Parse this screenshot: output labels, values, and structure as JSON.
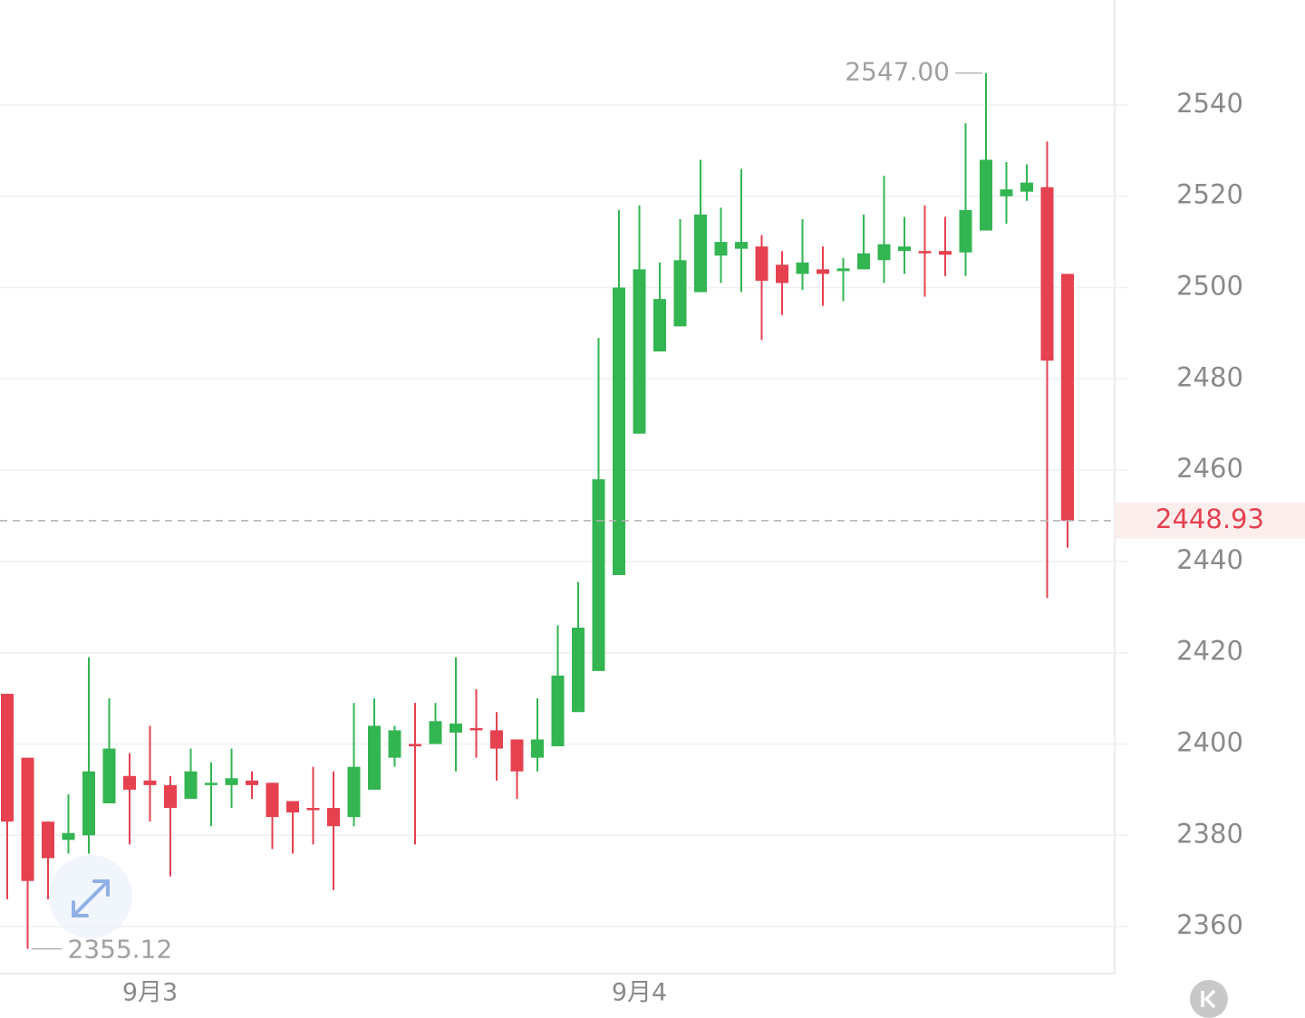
{
  "chart_data": {
    "type": "candlestick",
    "categories": [
      null,
      null,
      null,
      null,
      null,
      null,
      null,
      "9月3",
      null,
      null,
      null,
      null,
      null,
      null,
      null,
      null,
      null,
      null,
      null,
      null,
      null,
      null,
      null,
      null,
      null,
      null,
      null,
      null,
      null,
      null,
      null,
      "9月4",
      null,
      null,
      null,
      null,
      null,
      null,
      null,
      null,
      null,
      null,
      null,
      null,
      null,
      null,
      null,
      null,
      null,
      null,
      null,
      null,
      null
    ],
    "open": [
      2411,
      2397,
      2383,
      2379,
      2380,
      2387,
      2393,
      2392,
      2391,
      2388,
      2391,
      2391,
      2392,
      2391.5,
      2387.5,
      2386,
      2386,
      2384,
      2390,
      2397,
      2400,
      2400,
      2402.5,
      2403.5,
      2403,
      2401,
      2397,
      2399.5,
      2407,
      2416,
      2437,
      2468,
      2486,
      2491.5,
      2499,
      2507,
      2508.5,
      2509,
      2505,
      2503,
      2504,
      2503.6,
      2504,
      2506,
      2508,
      2508,
      2508,
      2507.7,
      2512.5,
      2520,
      2521,
      2522,
      2503
    ],
    "high": [
      2411,
      2397,
      2383,
      2389,
      2419,
      2410,
      2398,
      2404,
      2393,
      2399,
      2396,
      2399,
      2394,
      2391.5,
      2387.5,
      2395,
      2394,
      2409,
      2410,
      2404,
      2409,
      2409,
      2419,
      2412,
      2407,
      2401,
      2410,
      2426,
      2435.5,
      2489,
      2517,
      2518,
      2505.5,
      2515,
      2528,
      2517.5,
      2526,
      2511.5,
      2508,
      2515,
      2509,
      2506.5,
      2516,
      2524.5,
      2515.5,
      2518,
      2515.5,
      2536,
      2547,
      2527.5,
      2527,
      2532,
      2503
    ],
    "low": [
      2366,
      2355.12,
      2366,
      2376,
      2376,
      2387,
      2378,
      2383,
      2371,
      2388,
      2382,
      2386,
      2388,
      2377,
      2376,
      2378,
      2368,
      2382,
      2390,
      2395,
      2378,
      2400,
      2394,
      2397,
      2392,
      2388,
      2394,
      2399.5,
      2407,
      2416,
      2437,
      2468,
      2486,
      2491.5,
      2499,
      2501,
      2499,
      2488.5,
      2494,
      2499.5,
      2496,
      2497,
      2504,
      2501,
      2503,
      2498,
      2502.5,
      2502.5,
      2512.5,
      2514,
      2519,
      2432,
      2443
    ],
    "close": [
      2383,
      2370,
      2375,
      2380.5,
      2394,
      2399,
      2390,
      2391,
      2386,
      2394,
      2391.5,
      2392.5,
      2391,
      2384,
      2385,
      2385.8,
      2382,
      2395,
      2404,
      2403,
      2399.5,
      2405,
      2404.5,
      2403,
      2399,
      2394,
      2401,
      2415,
      2425.5,
      2458,
      2500,
      2504,
      2497.5,
      2506,
      2516,
      2510,
      2510,
      2501.5,
      2501,
      2505.5,
      2503,
      2504.2,
      2507.5,
      2509.5,
      2509,
      2507.7,
      2507.2,
      2517,
      2528,
      2521.5,
      2523,
      2484,
      2448.93
    ],
    "up_color": "#33b552",
    "down_color": "#e5414f",
    "ylim": [
      2349.7,
      2563
    ],
    "yticks": [
      2360,
      2380,
      2400,
      2420,
      2440,
      2460,
      2480,
      2500,
      2520,
      2540
    ],
    "grid": true,
    "high_marker": {
      "value": 2547,
      "label": "2547.00"
    },
    "low_marker": 2355.12,
    "last_price": 2448.93
  }
}
